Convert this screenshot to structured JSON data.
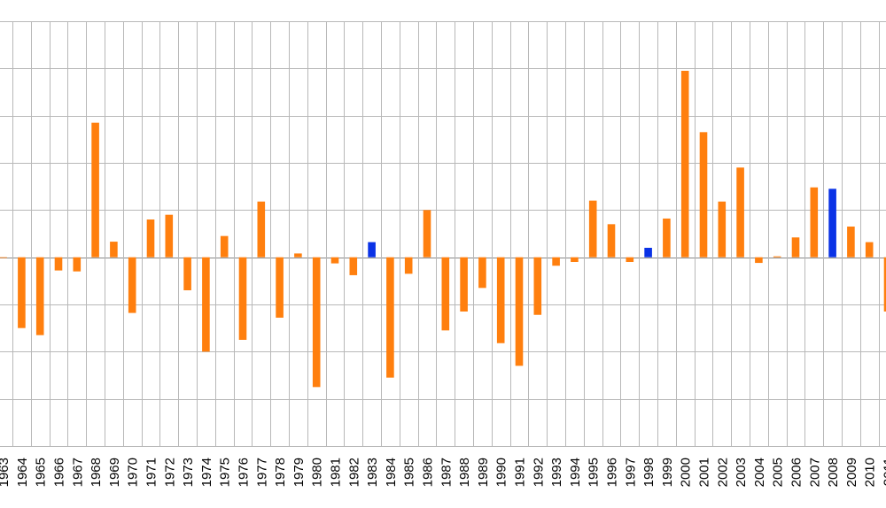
{
  "chart_data": {
    "type": "bar",
    "title": "",
    "xlabel": "",
    "ylabel": "",
    "categories": [
      "1963",
      "1964",
      "1965",
      "1966",
      "1967",
      "1968",
      "1969",
      "1970",
      "1971",
      "1972",
      "1973",
      "1974",
      "1975",
      "1976",
      "1977",
      "1978",
      "1979",
      "1980",
      "1981",
      "1982",
      "1983",
      "1984",
      "1985",
      "1986",
      "1987",
      "1988",
      "1989",
      "1990",
      "1991",
      "1992",
      "1993",
      "1994",
      "1995",
      "1996",
      "1997",
      "1998",
      "1999",
      "2000",
      "2001",
      "2002",
      "2003",
      "2004",
      "2005",
      "2006",
      "2007",
      "2008",
      "2009",
      "2010",
      "2011"
    ],
    "values": [
      0,
      -1.5,
      -1.65,
      -0.28,
      -0.3,
      2.85,
      0.33,
      -1.18,
      0.8,
      0.9,
      -0.7,
      -2.0,
      0.45,
      -1.75,
      1.18,
      -1.28,
      0.08,
      -2.75,
      -0.13,
      -0.38,
      0.32,
      -2.55,
      -0.35,
      1.0,
      -1.55,
      -1.15,
      -0.65,
      -1.82,
      -2.3,
      -1.22,
      -0.18,
      -0.1,
      1.2,
      0.7,
      -0.1,
      0.2,
      0.82,
      3.95,
      2.65,
      1.18,
      1.9,
      -0.12,
      0.02,
      0.42,
      1.48,
      1.45,
      0.65,
      0.32,
      -1.15
    ],
    "highlighted": [
      "1983",
      "1998",
      "2008"
    ],
    "ylim": [
      -4,
      5
    ],
    "ystep": 1,
    "grid": true,
    "legend": "none",
    "colors": {
      "default_bar": "#ff7f0e",
      "highlight_bar": "#0a32e6",
      "grid": "#b8b8b8"
    }
  }
}
